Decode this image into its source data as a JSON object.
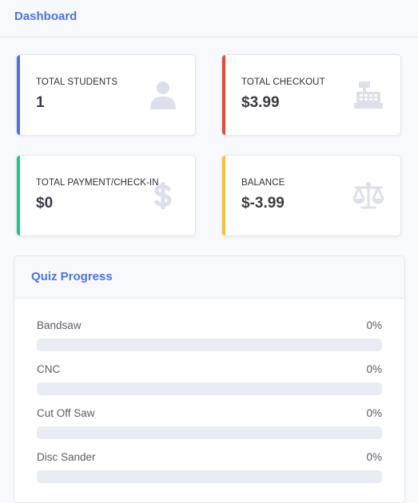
{
  "header": {
    "title": "Dashboard"
  },
  "cards": [
    {
      "label": "TOTAL STUDENTS",
      "value": "1",
      "accent": "#4e73df",
      "icon": "user-icon"
    },
    {
      "label": "TOTAL CHECKOUT",
      "value": "$3.99",
      "accent": "#e74a3b",
      "icon": "cash-register-icon"
    },
    {
      "label": "TOTAL PAYMENT/CHECK-IN",
      "value": "$0",
      "accent": "#1cc88a",
      "icon": "dollar-sign-icon"
    },
    {
      "label": "BALANCE",
      "value": "$-3.99",
      "accent": "#f6c23e",
      "icon": "balance-scale-icon"
    }
  ],
  "quiz": {
    "title": "Quiz Progress",
    "items": [
      {
        "name": "Bandsaw",
        "percent_label": "0%",
        "progress": 0
      },
      {
        "name": "CNC",
        "percent_label": "0%",
        "progress": 0
      },
      {
        "name": "Cut Off Saw",
        "percent_label": "0%",
        "progress": 0
      },
      {
        "name": "Disc Sander",
        "percent_label": "0%",
        "progress": 0
      }
    ]
  },
  "colors": {
    "primary": "#4e73df",
    "icon_gray": "#dddfeb",
    "track": "#eaecf4"
  }
}
